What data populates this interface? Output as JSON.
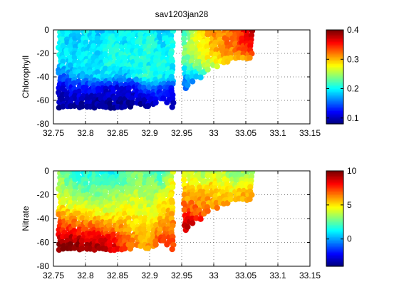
{
  "figure": {
    "title": "sav1203jan28"
  },
  "chart_data": [
    {
      "type": "scatter",
      "title": "sav1203jan28",
      "xlabel": "",
      "ylabel": "Chlorophyll",
      "xlim": [
        32.75,
        33.15
      ],
      "ylim": [
        -80,
        0
      ],
      "xticks": [
        32.75,
        32.8,
        32.85,
        32.9,
        32.95,
        33,
        33.05,
        33.1,
        33.15
      ],
      "xtick_labels": [
        "32.75",
        "32.8",
        "32.85",
        "32.9",
        "32.95",
        "33",
        "33.05",
        "33.1",
        "33.15"
      ],
      "yticks": [
        -80,
        -60,
        -40,
        -20,
        0
      ],
      "ytick_labels": [
        "-80",
        "-60",
        "-40",
        "-20",
        "0"
      ],
      "grid": true,
      "colormap": "jet",
      "clim": [
        0.08,
        0.4
      ],
      "colorbar_ticks": [
        0.1,
        0.2,
        0.3,
        0.4
      ],
      "colorbar_tick_labels": [
        "0.1",
        "0.2",
        "0.3",
        "0.4"
      ],
      "sections": [
        {
          "x": [
            32.76,
            32.78,
            32.8,
            32.82,
            32.84,
            32.86,
            32.88,
            32.9,
            32.92,
            32.935
          ],
          "bottom": [
            -66,
            -66,
            -66,
            -66,
            -66,
            -66,
            -65,
            -66,
            -60,
            -66
          ],
          "rows": [
            {
              "depth": -2,
              "values": [
                0.2,
                0.19,
                0.2,
                0.18,
                0.19,
                0.2,
                0.19,
                0.21,
                0.18,
                0.2
              ]
            },
            {
              "depth": -10,
              "values": [
                0.2,
                0.18,
                0.19,
                0.19,
                0.21,
                0.19,
                0.2,
                0.21,
                0.19,
                0.2
              ]
            },
            {
              "depth": -20,
              "values": [
                0.2,
                0.19,
                0.2,
                0.19,
                0.2,
                0.21,
                0.2,
                0.22,
                0.19,
                0.21
              ]
            },
            {
              "depth": -30,
              "values": [
                0.19,
                0.19,
                0.2,
                0.19,
                0.21,
                0.2,
                0.21,
                0.2,
                0.21,
                0.2
              ]
            },
            {
              "depth": -40,
              "values": [
                0.14,
                0.17,
                0.18,
                0.19,
                0.19,
                0.17,
                0.2,
                0.22,
                0.2,
                0.19
              ]
            },
            {
              "depth": -48,
              "values": [
                0.11,
                0.13,
                0.13,
                0.13,
                0.12,
                0.12,
                0.13,
                0.16,
                0.15,
                0.14
              ]
            },
            {
              "depth": -56,
              "values": [
                0.1,
                0.11,
                0.11,
                0.1,
                0.1,
                0.1,
                0.11,
                0.12,
                0.13,
                0.11
              ]
            },
            {
              "depth": -64,
              "values": [
                0.09,
                0.09,
                0.09,
                0.09,
                0.09,
                0.09,
                0.09,
                0.1,
                0.11,
                0.09
              ]
            }
          ]
        },
        {
          "x": [
            32.955,
            32.97,
            32.985,
            33.0,
            33.015,
            33.03,
            33.045,
            33.058
          ],
          "bottom": [
            -52,
            -44,
            -38,
            -32,
            -28,
            -26,
            -24,
            -24
          ],
          "rows": [
            {
              "depth": -2,
              "values": [
                0.22,
                0.26,
                0.3,
                0.32,
                0.31,
                0.33,
                0.35,
                0.38
              ]
            },
            {
              "depth": -10,
              "values": [
                0.23,
                0.27,
                0.29,
                0.3,
                0.32,
                0.33,
                0.35,
                0.36
              ]
            },
            {
              "depth": -18,
              "values": [
                0.24,
                0.26,
                0.28,
                0.3,
                0.31,
                0.32,
                0.33,
                0.34
              ]
            },
            {
              "depth": -26,
              "values": [
                0.23,
                0.25,
                0.27,
                0.28,
                0.3,
                null,
                null,
                null
              ]
            },
            {
              "depth": -34,
              "values": [
                0.2,
                0.22,
                0.24,
                null,
                null,
                null,
                null,
                null
              ]
            },
            {
              "depth": -44,
              "values": [
                0.16,
                null,
                null,
                null,
                null,
                null,
                null,
                null
              ]
            }
          ]
        }
      ]
    },
    {
      "type": "scatter",
      "title": "",
      "xlabel": "",
      "ylabel": "Nitrate",
      "xlim": [
        32.75,
        33.15
      ],
      "ylim": [
        -80,
        0
      ],
      "xticks": [
        32.75,
        32.8,
        32.85,
        32.9,
        32.95,
        33,
        33.05,
        33.1,
        33.15
      ],
      "xtick_labels": [
        "32.75",
        "32.8",
        "32.85",
        "32.9",
        "32.95",
        "33",
        "33.05",
        "33.1",
        "33.15"
      ],
      "yticks": [
        -80,
        -60,
        -40,
        -20,
        0
      ],
      "ytick_labels": [
        "-80",
        "-60",
        "-40",
        "-20",
        "0"
      ],
      "grid": true,
      "colormap": "jet",
      "clim": [
        -4,
        10
      ],
      "colorbar_ticks": [
        0,
        5,
        10
      ],
      "colorbar_tick_labels": [
        "0",
        "5",
        "10"
      ],
      "sections": [
        {
          "x": [
            32.76,
            32.78,
            32.8,
            32.82,
            32.84,
            32.86,
            32.88,
            32.9,
            32.92,
            32.935
          ],
          "bottom": [
            -66,
            -66,
            -66,
            -66,
            -66,
            -66,
            -65,
            -66,
            -60,
            -66
          ],
          "rows": [
            {
              "depth": -2,
              "values": [
                3.0,
                2.0,
                1.5,
                2.0,
                1.0,
                2.0,
                3.0,
                2.5,
                2.0,
                4.0
              ]
            },
            {
              "depth": -10,
              "values": [
                3.5,
                2.5,
                2.0,
                2.5,
                2.0,
                2.5,
                3.0,
                3.0,
                2.5,
                4.5
              ]
            },
            {
              "depth": -20,
              "values": [
                4.0,
                3.5,
                3.0,
                3.0,
                3.0,
                3.5,
                4.0,
                3.5,
                4.0,
                5.0
              ]
            },
            {
              "depth": -30,
              "values": [
                5.0,
                4.5,
                4.5,
                4.0,
                4.0,
                4.5,
                4.5,
                4.0,
                5.0,
                5.5
              ]
            },
            {
              "depth": -40,
              "values": [
                6.5,
                6.0,
                6.0,
                5.5,
                5.0,
                5.5,
                5.0,
                4.5,
                5.5,
                6.0
              ]
            },
            {
              "depth": -48,
              "values": [
                7.5,
                7.5,
                7.0,
                7.0,
                6.5,
                6.0,
                5.5,
                5.0,
                6.5,
                6.5
              ]
            },
            {
              "depth": -56,
              "values": [
                9.0,
                9.0,
                8.5,
                8.5,
                8.0,
                7.0,
                6.0,
                5.5,
                7.5,
                7.0
              ]
            },
            {
              "depth": -64,
              "values": [
                10.0,
                10.0,
                9.5,
                9.5,
                9.0,
                7.5,
                6.5,
                6.0,
                8.0,
                7.0
              ]
            }
          ]
        },
        {
          "x": [
            32.955,
            32.97,
            32.985,
            33.0,
            33.015,
            33.03,
            33.045,
            33.058
          ],
          "bottom": [
            -52,
            -44,
            -38,
            -32,
            -28,
            -26,
            -24,
            -24
          ],
          "rows": [
            {
              "depth": -2,
              "values": [
                4.5,
                4.0,
                3.5,
                4.0,
                4.0,
                3.0,
                3.5,
                3.0
              ]
            },
            {
              "depth": -10,
              "values": [
                5.0,
                4.5,
                4.5,
                5.0,
                4.5,
                4.0,
                4.0,
                4.5
              ]
            },
            {
              "depth": -18,
              "values": [
                5.5,
                5.5,
                6.0,
                5.5,
                5.0,
                5.0,
                5.5,
                5.5
              ]
            },
            {
              "depth": -26,
              "values": [
                6.5,
                6.5,
                6.0,
                6.0,
                6.0,
                null,
                null,
                null
              ]
            },
            {
              "depth": -34,
              "values": [
                7.5,
                7.0,
                6.5,
                null,
                null,
                null,
                null,
                null
              ]
            },
            {
              "depth": -44,
              "values": [
                9.0,
                null,
                null,
                null,
                null,
                null,
                null,
                null
              ]
            }
          ]
        }
      ]
    }
  ]
}
